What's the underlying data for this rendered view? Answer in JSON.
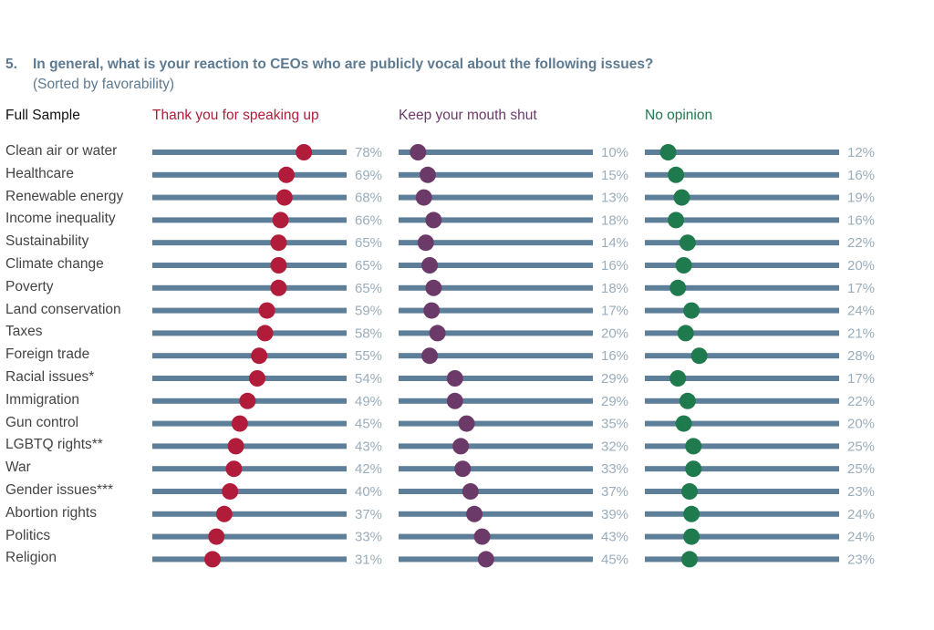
{
  "question": {
    "number": "5.",
    "text": "In general, what is your reaction to CEOs who are publicly vocal about the following issues?",
    "subtitle": "(Sorted by favorability)"
  },
  "sample_label": "Full Sample",
  "chart_data": {
    "type": "dot-plot",
    "title": "In general, what is your reaction to CEOs who are publicly vocal about the following issues?",
    "subtitle": "(Sorted by favorability)",
    "xlim": [
      0,
      100
    ],
    "unit": "%",
    "categories": [
      "Clean air or water",
      "Healthcare",
      "Renewable energy",
      "Income inequality",
      "Sustainability",
      "Climate change",
      "Poverty",
      "Land conservation",
      "Taxes",
      "Foreign trade",
      "Racial issues*",
      "Immigration",
      "Gun control",
      "LGBTQ rights**",
      "War",
      "Gender issues***",
      "Abortion rights",
      "Politics",
      "Religion"
    ],
    "series": [
      {
        "name": "Thank you for speaking up",
        "color": "#b01c3a",
        "values": [
          78,
          69,
          68,
          66,
          65,
          65,
          65,
          59,
          58,
          55,
          54,
          49,
          45,
          43,
          42,
          40,
          37,
          33,
          31
        ]
      },
      {
        "name": "Keep your mouth shut",
        "color": "#6b3a68",
        "values": [
          10,
          15,
          13,
          18,
          14,
          16,
          18,
          17,
          20,
          16,
          29,
          29,
          35,
          32,
          33,
          37,
          39,
          43,
          45
        ]
      },
      {
        "name": "No opinion",
        "color": "#1f7a4e",
        "values": [
          12,
          16,
          19,
          16,
          22,
          20,
          17,
          24,
          21,
          28,
          17,
          22,
          20,
          25,
          25,
          23,
          24,
          24,
          23
        ]
      }
    ],
    "track_color": "#5e7f99",
    "label_color": "#9aadbc"
  }
}
